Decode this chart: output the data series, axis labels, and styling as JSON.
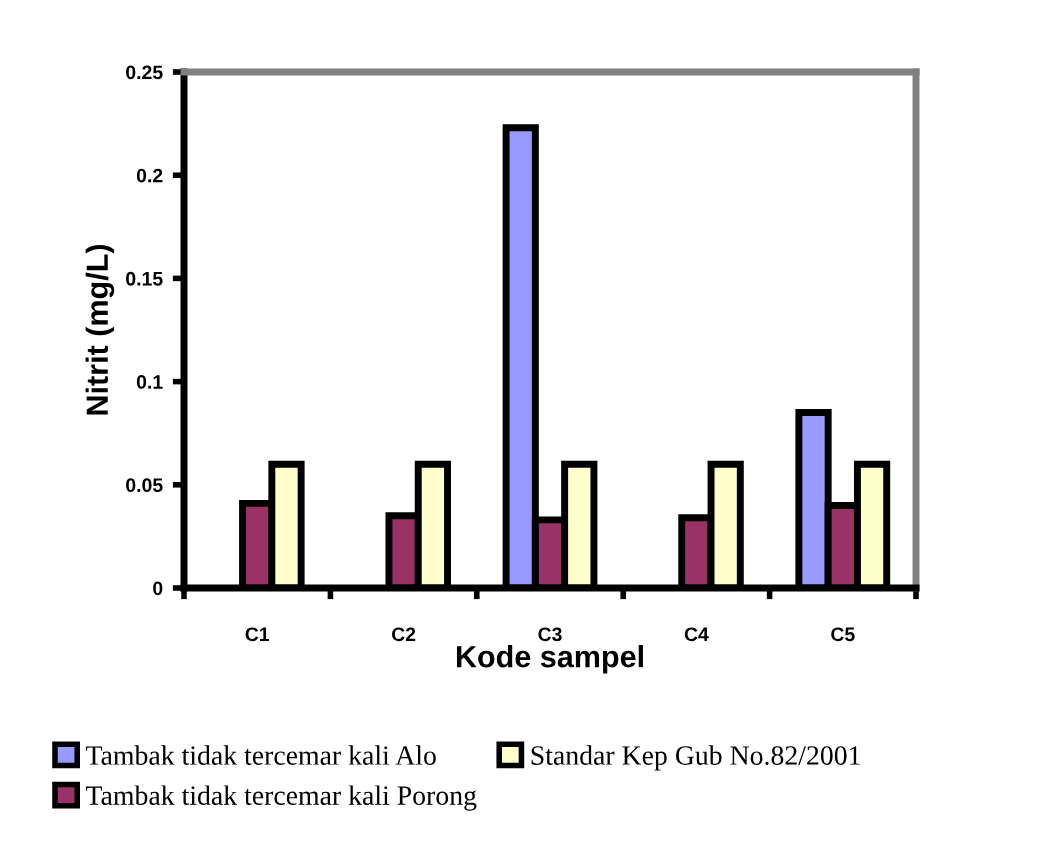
{
  "chart_data": {
    "type": "bar",
    "xlabel": "Kode sampel",
    "ylabel": "Nitrit (mg/L)",
    "categories": [
      "C1",
      "C2",
      "C3",
      "C4",
      "C5"
    ],
    "series": [
      {
        "name": "Tambak tidak tercemar kali Alo",
        "color": "#9999ff",
        "values": [
          null,
          null,
          0.223,
          null,
          0.085
        ]
      },
      {
        "name": "Tambak tidak tercemar kali Porong",
        "color": "#993366",
        "values": [
          0.041,
          0.035,
          0.033,
          0.034,
          0.04
        ]
      },
      {
        "name": "Standar Kep Gub No.82/2001",
        "color": "#ffffcc",
        "values": [
          0.06,
          0.06,
          0.06,
          0.06,
          0.06
        ]
      }
    ],
    "ylim": [
      0,
      0.25
    ],
    "yticks": [
      0,
      0.05,
      0.1,
      0.15,
      0.2,
      0.25
    ],
    "grid": false,
    "legend": "bottom"
  }
}
